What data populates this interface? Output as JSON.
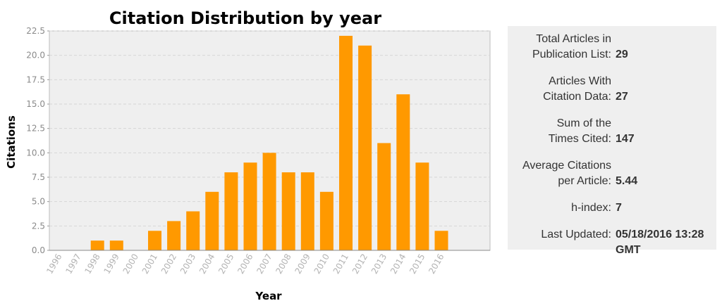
{
  "chart_data": {
    "type": "bar",
    "title": "Citation Distribution by year",
    "xlabel": "Year",
    "ylabel": "Citations",
    "categories": [
      "1996",
      "1997",
      "1998",
      "1999",
      "2000",
      "2001",
      "2002",
      "2003",
      "2004",
      "2005",
      "2006",
      "2007",
      "2008",
      "2009",
      "2010",
      "2011",
      "2012",
      "2013",
      "2014",
      "2015",
      "2016"
    ],
    "values": [
      0,
      0,
      1,
      1,
      0,
      2,
      3,
      4,
      6,
      8,
      9,
      10,
      8,
      8,
      6,
      22,
      21,
      11,
      16,
      9,
      2
    ],
    "ylim": [
      0,
      22.5
    ],
    "yticks": [
      "0.0",
      "2.5",
      "5.0",
      "7.5",
      "10.0",
      "12.5",
      "15.0",
      "17.5",
      "20.0",
      "22.5"
    ],
    "grid": true,
    "bar_color": "#ff9900",
    "plot_background": "#efefef"
  },
  "stats": [
    {
      "label_lines": [
        "Total Articles in",
        "Publication List:"
      ],
      "value": "29"
    },
    {
      "label_lines": [
        "Articles With",
        "Citation Data:"
      ],
      "value": "27"
    },
    {
      "label_lines": [
        "Sum of the",
        "Times Cited:"
      ],
      "value": "147"
    },
    {
      "label_lines": [
        "Average Citations",
        "per Article:"
      ],
      "value": "5.44"
    },
    {
      "label_lines": [
        "h-index:"
      ],
      "value": "7"
    },
    {
      "label_lines": [
        "Last Updated:"
      ],
      "value": "05/18/2016 13:28 GMT"
    }
  ]
}
